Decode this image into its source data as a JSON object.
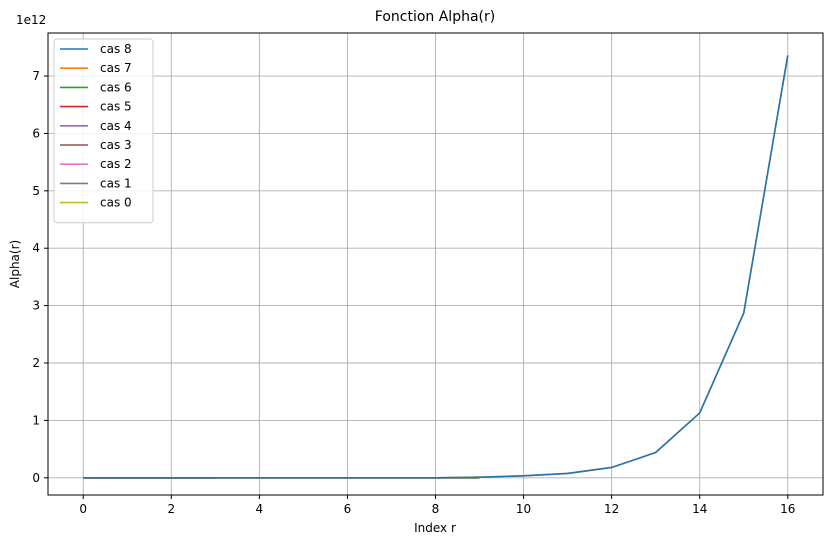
{
  "chart_data": {
    "type": "line",
    "title": "Fonction Alpha(r)",
    "xlabel": "Index r",
    "ylabel": "Alpha(r)",
    "y_offset_label": "1e12",
    "y_scale": 1000000000000.0,
    "xlim": [
      -0.8,
      16.8
    ],
    "ylim": [
      -300000000000.0,
      7750000000000.0
    ],
    "x_ticks": [
      0,
      2,
      4,
      6,
      8,
      10,
      12,
      14,
      16
    ],
    "y_ticks": [
      0,
      1,
      2,
      3,
      4,
      5,
      6,
      7
    ],
    "grid": true,
    "legend_position": "upper-left",
    "series": [
      {
        "name": "cas 8",
        "color": "#1f77b4",
        "x": [
          0,
          1,
          2,
          3,
          4,
          5,
          6,
          7,
          8,
          9,
          10,
          11,
          12,
          13,
          14,
          15,
          16
        ],
        "y": [
          0,
          0,
          0,
          0,
          0,
          0,
          0,
          0,
          0,
          10000000000.0,
          35000000000.0,
          75000000000.0,
          180000000000.0,
          440000000000.0,
          1130000000000.0,
          2870000000000.0,
          7360000000000.0
        ]
      },
      {
        "name": "cas 7",
        "color": "#ff7f0e",
        "x": [
          0,
          1,
          2,
          3,
          4,
          5,
          6,
          7,
          8,
          9,
          10,
          11,
          12,
          13,
          14,
          15,
          16
        ],
        "y": [
          0,
          0,
          0,
          0,
          0,
          0,
          0,
          0,
          0,
          10000000000.0,
          35000000000.0,
          75000000000.0,
          180000000000.0,
          440000000000.0,
          1130000000000.0,
          2870000000000.0,
          7360000000000.0
        ]
      },
      {
        "name": "cas 6",
        "color": "#2ca02c",
        "x": [
          0,
          1,
          2,
          3,
          4,
          5,
          6,
          7,
          8,
          9
        ],
        "y": [
          0,
          0,
          0,
          0,
          0,
          0,
          0,
          0,
          0,
          0
        ]
      },
      {
        "name": "cas 5",
        "color": "#d62728",
        "x": [
          0,
          1,
          2,
          3,
          4,
          5,
          6,
          7,
          8,
          9
        ],
        "y": [
          0,
          0,
          0,
          0,
          0,
          0,
          0,
          0,
          0,
          0
        ]
      },
      {
        "name": "cas 4",
        "color": "#9467bd",
        "x": [
          0,
          1,
          2,
          3,
          4,
          5,
          6,
          7,
          8,
          9
        ],
        "y": [
          0,
          0,
          0,
          0,
          0,
          0,
          0,
          0,
          0,
          0
        ]
      },
      {
        "name": "cas 3",
        "color": "#8c564b",
        "x": [
          0,
          1,
          2,
          3
        ],
        "y": [
          0,
          0,
          0,
          0
        ]
      },
      {
        "name": "cas 2",
        "color": "#e377c2",
        "x": [
          0,
          1,
          2,
          3
        ],
        "y": [
          0,
          0,
          0,
          0
        ]
      },
      {
        "name": "cas 1",
        "color": "#7f7f7f",
        "x": [
          0,
          1,
          2,
          3
        ],
        "y": [
          0,
          0,
          0,
          0
        ]
      },
      {
        "name": "cas 0",
        "color": "#bcbd22",
        "x": [
          0,
          1,
          2,
          3
        ],
        "y": [
          0,
          0,
          0,
          0
        ]
      }
    ]
  }
}
